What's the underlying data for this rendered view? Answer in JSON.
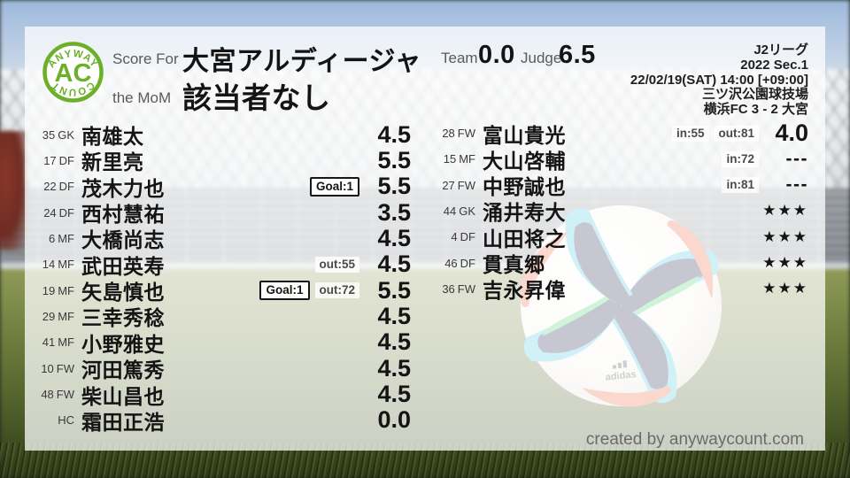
{
  "logo": {
    "arc_top": "ANYWAY",
    "center": "AC",
    "arc_bottom": "COUNT"
  },
  "header": {
    "score_for_label": "Score For",
    "team_name": "大宮アルディージャ",
    "mom_label": "the MoM",
    "mom_value": "該当者なし",
    "team_label": "Team",
    "team_score": "0.0",
    "judge_label": "Judge",
    "judge_score": "6.5"
  },
  "match_info": {
    "league": "J2リーグ",
    "season": "2022 Sec.1",
    "datetime": "22/02/19(SAT) 14:00 [+09:00]",
    "venue": "三ツ沢公園球技場",
    "result": "横浜FC 3 - 2 大宮"
  },
  "players": {
    "starters": [
      {
        "num": "35",
        "pos": "GK",
        "name": "南雄太",
        "rating": "4.5"
      },
      {
        "num": "17",
        "pos": "DF",
        "name": "新里亮",
        "rating": "5.5"
      },
      {
        "num": "22",
        "pos": "DF",
        "name": "茂木力也",
        "goal": "Goal:1",
        "rating": "5.5"
      },
      {
        "num": "24",
        "pos": "DF",
        "name": "西村慧祐",
        "rating": "3.5"
      },
      {
        "num": "6",
        "pos": "MF",
        "name": "大橋尚志",
        "rating": "4.5"
      },
      {
        "num": "14",
        "pos": "MF",
        "name": "武田英寿",
        "out": "out:55",
        "rating": "4.5"
      },
      {
        "num": "19",
        "pos": "MF",
        "name": "矢島慎也",
        "goal": "Goal:1",
        "out": "out:72",
        "rating": "5.5"
      },
      {
        "num": "29",
        "pos": "MF",
        "name": "三幸秀稔",
        "rating": "4.5"
      },
      {
        "num": "41",
        "pos": "MF",
        "name": "小野雅史",
        "rating": "4.5"
      },
      {
        "num": "10",
        "pos": "FW",
        "name": "河田篤秀",
        "rating": "4.5"
      },
      {
        "num": "48",
        "pos": "FW",
        "name": "柴山昌也",
        "rating": "4.5"
      },
      {
        "num": "",
        "pos": "HC",
        "name": "霜田正浩",
        "rating": "0.0"
      }
    ],
    "subs": [
      {
        "num": "28",
        "pos": "FW",
        "name": "富山貴光",
        "in": "in:55",
        "out": "out:81",
        "rating": "4.0"
      },
      {
        "num": "15",
        "pos": "MF",
        "name": "大山啓輔",
        "in": "in:72",
        "rating": "---"
      },
      {
        "num": "27",
        "pos": "FW",
        "name": "中野誠也",
        "in": "in:81",
        "rating": "---"
      },
      {
        "num": "44",
        "pos": "GK",
        "name": "涌井寿大",
        "rating": "★★★"
      },
      {
        "num": "4",
        "pos": "DF",
        "name": "山田将之",
        "rating": "★★★"
      },
      {
        "num": "46",
        "pos": "DF",
        "name": "貫真郷",
        "rating": "★★★"
      },
      {
        "num": "36",
        "pos": "FW",
        "name": "吉永昇偉",
        "rating": "★★★"
      }
    ]
  },
  "footer": {
    "credit": "created by anywaycount.com"
  },
  "colors": {
    "accent_green": "#6cb02a",
    "panel_overlay": "rgba(255,255,255,0.74)",
    "text_dark": "#141414",
    "label_gray": "#5a5a5a",
    "ball_navy": "#232a4e",
    "ball_cyan": "#4cc8de",
    "ball_orange": "#ef6a3e",
    "ball_green": "#49cf78"
  }
}
